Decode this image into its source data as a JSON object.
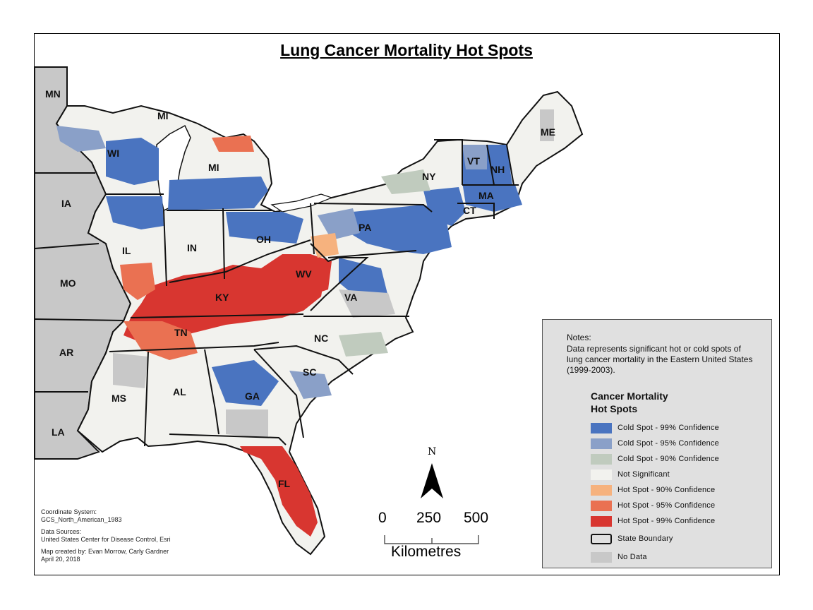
{
  "title": "Lung Cancer Mortality Hot Spots",
  "state_labels": {
    "MN": "MN",
    "MI_upper": "MI",
    "MI": "MI",
    "WI": "WI",
    "IA": "IA",
    "IL": "IL",
    "IN": "IN",
    "OH": "OH",
    "MO": "MO",
    "KY": "KY",
    "WV": "WV",
    "PA": "PA",
    "NY": "NY",
    "VT": "VT",
    "NH": "NH",
    "ME": "ME",
    "MA": "MA",
    "CT": "CT",
    "VA": "VA",
    "TN": "TN",
    "NC": "NC",
    "AR": "AR",
    "SC": "SC",
    "MS": "MS",
    "AL": "AL",
    "GA": "GA",
    "LA": "LA",
    "FL": "FL"
  },
  "notes": {
    "heading": "Notes:",
    "text": "Data represents significant hot or cold spots of lung cancer mortality in the Eastern United States (1999-2003)."
  },
  "legend": {
    "title_line1": "Cancer Mortality",
    "title_line2": "Hot Spots",
    "items": [
      {
        "label": "Cold Spot - 99% Confidence",
        "color": "#4a74c0"
      },
      {
        "label": "Cold Spot - 95% Confidence",
        "color": "#8aa0c8"
      },
      {
        "label": "Cold Spot - 90% Confidence",
        "color": "#c0cbbe"
      },
      {
        "label": "Not Significant",
        "color": "#f2f2ee"
      },
      {
        "label": "Hot Spot - 90% Confidence",
        "color": "#f6b27e"
      },
      {
        "label": "Hot Spot - 95% Confidence",
        "color": "#ea7152"
      },
      {
        "label": "Hot Spot - 99% Confidence",
        "color": "#d83630"
      },
      {
        "label": "State Boundary",
        "color": "#ffffff"
      },
      {
        "label": "No Data",
        "color": "#c8c8c8"
      }
    ]
  },
  "info": {
    "coord_label": "Coordinate System:",
    "coord_value": "GCS_North_American_1983",
    "sources_label": "Data Sources:",
    "sources_value": "United States Center for Disease Control, Esri",
    "credit": "Map created by: Evan Morrow, Carly Gardner",
    "date": "April 20, 2018"
  },
  "north_arrow": "N",
  "scale_bar": {
    "ticks": [
      "0",
      "250",
      "500"
    ],
    "unit": "Kilometres"
  },
  "colors": {
    "cold99": "#4a74c0",
    "cold95": "#8aa0c8",
    "cold90": "#c0cbbe",
    "notsig": "#f2f2ee",
    "hot90": "#f6b27e",
    "hot95": "#ea7152",
    "hot99": "#d83630",
    "nodata": "#c8c8c8",
    "water": "#ffffff"
  }
}
